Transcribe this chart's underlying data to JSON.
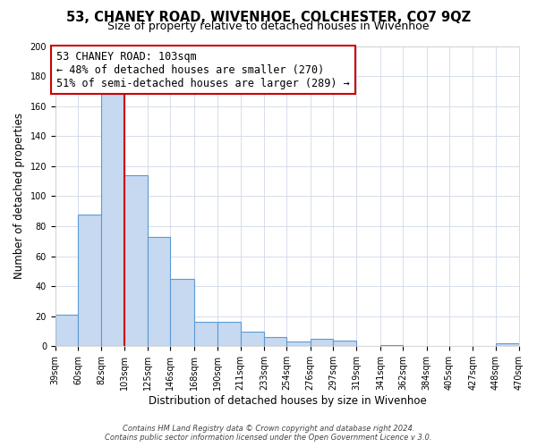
{
  "title": "53, CHANEY ROAD, WIVENHOE, COLCHESTER, CO7 9QZ",
  "subtitle": "Size of property relative to detached houses in Wivenhoe",
  "xlabel": "Distribution of detached houses by size in Wivenhoe",
  "ylabel": "Number of detached properties",
  "bins": [
    39,
    60,
    82,
    103,
    125,
    146,
    168,
    190,
    211,
    233,
    254,
    276,
    297,
    319,
    341,
    362,
    384,
    405,
    427,
    448,
    470
  ],
  "counts": [
    21,
    88,
    168,
    114,
    73,
    45,
    16,
    16,
    10,
    6,
    3,
    5,
    4,
    0,
    1,
    0,
    0,
    0,
    0,
    2
  ],
  "bar_color": "#c6d9f0",
  "bar_edge_color": "#5b9bd5",
  "vline_x": 103,
  "vline_color": "#cc0000",
  "annotation_line1": "53 CHANEY ROAD: 103sqm",
  "annotation_line2": "← 48% of detached houses are smaller (270)",
  "annotation_line3": "51% of semi-detached houses are larger (289) →",
  "annotation_box_color": "#ffffff",
  "annotation_box_edge": "#cc0000",
  "ylim": [
    0,
    200
  ],
  "yticks": [
    0,
    20,
    40,
    60,
    80,
    100,
    120,
    140,
    160,
    180,
    200
  ],
  "tick_labels": [
    "39sqm",
    "60sqm",
    "82sqm",
    "103sqm",
    "125sqm",
    "146sqm",
    "168sqm",
    "190sqm",
    "211sqm",
    "233sqm",
    "254sqm",
    "276sqm",
    "297sqm",
    "319sqm",
    "341sqm",
    "362sqm",
    "384sqm",
    "405sqm",
    "427sqm",
    "448sqm",
    "470sqm"
  ],
  "footer1": "Contains HM Land Registry data © Crown copyright and database right 2024.",
  "footer2": "Contains public sector information licensed under the Open Government Licence v 3.0.",
  "bg_color": "#ffffff",
  "grid_color": "#d0d8e8",
  "title_fontsize": 10.5,
  "subtitle_fontsize": 9.0,
  "ylabel_fontsize": 8.5,
  "xlabel_fontsize": 8.5,
  "tick_fontsize": 7.0,
  "annotation_fontsize": 8.5,
  "footer_fontsize": 6.0
}
